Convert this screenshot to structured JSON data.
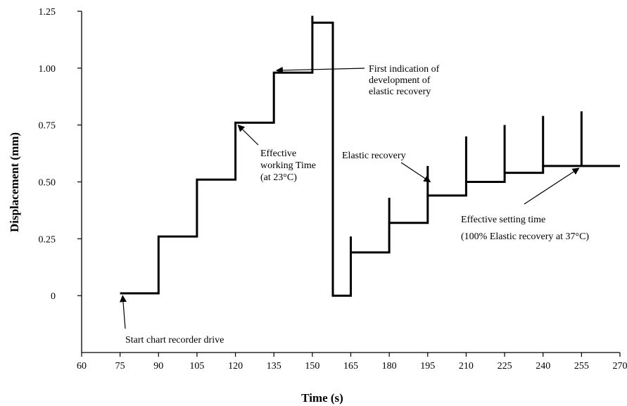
{
  "chart_data": {
    "type": "line",
    "title": "",
    "xlabel": "Time (s)",
    "ylabel": "Displacement (mm)",
    "xlim": [
      60,
      270
    ],
    "ylim": [
      -0.25,
      1.25
    ],
    "grid": false,
    "x_ticks": [
      {
        "value": 60,
        "label": "60"
      },
      {
        "value": 75,
        "label": "75"
      },
      {
        "value": 90,
        "label": "90"
      },
      {
        "value": 105,
        "label": "105"
      },
      {
        "value": 120,
        "label": "120"
      },
      {
        "value": 135,
        "label": "135"
      },
      {
        "value": 150,
        "label": "150"
      },
      {
        "value": 165,
        "label": "165"
      },
      {
        "value": 180,
        "label": "180"
      },
      {
        "value": 195,
        "label": "195"
      },
      {
        "value": 210,
        "label": "210"
      },
      {
        "value": 225,
        "label": "225"
      },
      {
        "value": 240,
        "label": "240"
      },
      {
        "value": 255,
        "label": "255"
      },
      {
        "value": 270,
        "label": "270"
      }
    ],
    "y_ticks": [
      {
        "value": 0,
        "label": "0"
      },
      {
        "value": 0.25,
        "label": "0.25"
      },
      {
        "value": 0.5,
        "label": "0.50"
      },
      {
        "value": 0.75,
        "label": "0.75"
      },
      {
        "value": 1.0,
        "label": "1.00"
      },
      {
        "value": 1.25,
        "label": "1.25"
      }
    ],
    "series": [
      {
        "points": [
          [
            75,
            0.01
          ],
          [
            90,
            0.01
          ],
          [
            90,
            0.26
          ],
          [
            105,
            0.26
          ],
          [
            105,
            0.51
          ],
          [
            120,
            0.51
          ],
          [
            120,
            0.76
          ],
          [
            135,
            0.76
          ],
          [
            135,
            0.98
          ],
          [
            150,
            0.98
          ],
          [
            150,
            1.2
          ],
          [
            158,
            1.2
          ],
          [
            158,
            0.0
          ],
          [
            165,
            0.0
          ],
          [
            165,
            0.19
          ],
          [
            180,
            0.19
          ],
          [
            180,
            0.32
          ],
          [
            195,
            0.32
          ],
          [
            195,
            0.44
          ],
          [
            210,
            0.44
          ],
          [
            210,
            0.5
          ],
          [
            225,
            0.5
          ],
          [
            225,
            0.54
          ],
          [
            240,
            0.54
          ],
          [
            240,
            0.57
          ],
          [
            270,
            0.57
          ]
        ]
      }
    ],
    "spikes": [
      {
        "x": 150,
        "y_from": 1.2,
        "y_to": 1.23
      },
      {
        "x": 165,
        "y_from": 0.19,
        "y_to": 0.26
      },
      {
        "x": 180,
        "y_from": 0.32,
        "y_to": 0.43
      },
      {
        "x": 195,
        "y_from": 0.44,
        "y_to": 0.57
      },
      {
        "x": 210,
        "y_from": 0.5,
        "y_to": 0.7
      },
      {
        "x": 225,
        "y_from": 0.54,
        "y_to": 0.75
      },
      {
        "x": 240,
        "y_from": 0.57,
        "y_to": 0.79
      },
      {
        "x": 255,
        "y_from": 0.57,
        "y_to": 0.81
      }
    ],
    "annotations": [
      {
        "lines": [
          "Start chart recorder drive"
        ],
        "point": [
          76,
          0.0
        ]
      },
      {
        "lines": [
          "Effective",
          "working Time",
          "(at 23°C)"
        ],
        "point": [
          121,
          0.75
        ]
      },
      {
        "lines": [
          "First indication of",
          "development of",
          "elastic recovery"
        ],
        "point": [
          136,
          0.99
        ]
      },
      {
        "lines": [
          "Elastic recovery"
        ],
        "point": [
          196,
          0.5
        ]
      },
      {
        "lines": [
          "Effective setting time",
          "(100% Elastic recovery at 37°C)"
        ],
        "point": [
          254,
          0.56
        ]
      }
    ]
  }
}
